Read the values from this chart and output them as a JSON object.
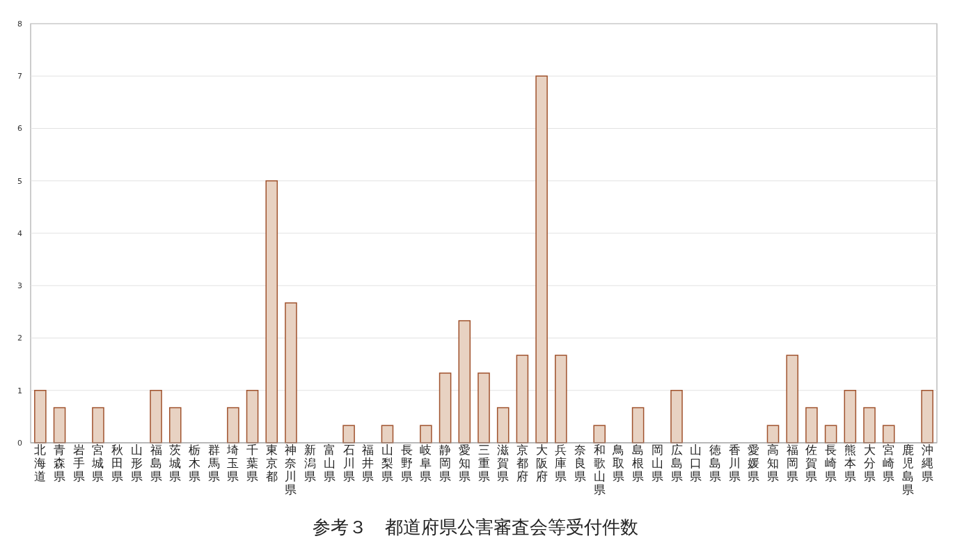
{
  "chart_data": {
    "type": "bar",
    "title": "参考３　都道府県公害審査会等受付件数",
    "categories": [
      "北海道",
      "青森県",
      "岩手県",
      "宮城県",
      "秋田県",
      "山形県",
      "福島県",
      "茨城県",
      "栃木県",
      "群馬県",
      "埼玉県",
      "千葉県",
      "東京都",
      "神奈川県",
      "新潟県",
      "富山県",
      "石川県",
      "福井県",
      "山梨県",
      "長野県",
      "岐阜県",
      "静岡県",
      "愛知県",
      "三重県",
      "滋賀県",
      "京都府",
      "大阪府",
      "兵庫県",
      "奈良県",
      "和歌山県",
      "鳥取県",
      "島根県",
      "岡山県",
      "広島県",
      "山口県",
      "徳島県",
      "香川県",
      "愛媛県",
      "高知県",
      "福岡県",
      "佐賀県",
      "長崎県",
      "熊本県",
      "大分県",
      "宮崎県",
      "鹿児島県",
      "沖縄県"
    ],
    "values": [
      1,
      0.67,
      0,
      0.67,
      0,
      0,
      1,
      0.67,
      0,
      0,
      0.67,
      1,
      5,
      2.67,
      0,
      0,
      0.33,
      0,
      0.33,
      0,
      0.33,
      1.33,
      2.33,
      1.33,
      0.67,
      1.67,
      7,
      1.67,
      0,
      0.33,
      0,
      0.67,
      0,
      1,
      0,
      0,
      0,
      0,
      0.33,
      1.67,
      0.67,
      0.33,
      1,
      0.67,
      0.33,
      0,
      1
    ],
    "color": "#e8d2c2",
    "ylim": [
      0,
      8
    ],
    "yticks": [
      0,
      1,
      2,
      3,
      4,
      5,
      6,
      7,
      8
    ],
    "grid": "y"
  }
}
